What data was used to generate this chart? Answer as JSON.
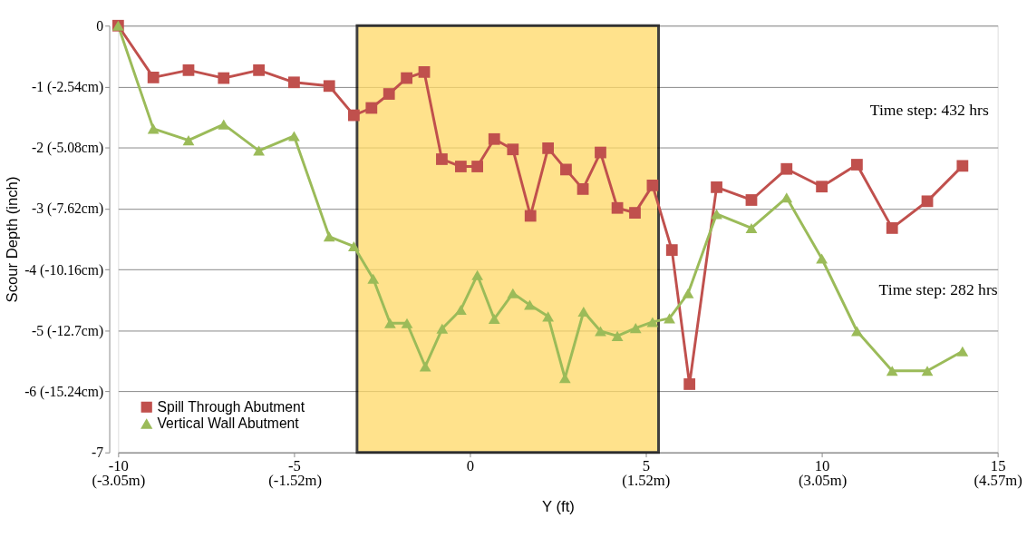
{
  "chart_data": {
    "type": "line",
    "xlabel": "Y (ft)",
    "ylabel": "Scour Depth (inch)",
    "xlim": [
      -10,
      15
    ],
    "ylim": [
      -7,
      0
    ],
    "xticks": [
      -10,
      -5,
      0,
      5,
      10,
      15
    ],
    "x2lim": [
      -3.05,
      4.57
    ],
    "x2ticks": [
      {
        "value": -3.05,
        "label": "(-3.05m)"
      },
      {
        "value": -1.52,
        "label": "(-1.52m)"
      },
      {
        "value": 1.52,
        "label": "(1.52m)"
      },
      {
        "value": 3.05,
        "label": "(3.05m)"
      },
      {
        "value": 4.57,
        "label": "(4.57m)"
      }
    ],
    "yticks": [
      0,
      {
        "value": -1,
        "label": "-1 (-2.54cm)"
      },
      {
        "value": -2,
        "label": "-2 (-5.08cm)"
      },
      {
        "value": -3,
        "label": "-3 (-7.62cm)"
      },
      {
        "value": -4,
        "label": "-4 (-10.16cm)"
      },
      {
        "value": -5,
        "label": "-5 (-12.7cm)"
      },
      {
        "value": -6,
        "label": "-6 (-15.24cm)"
      },
      -7
    ],
    "grid": "y",
    "legend": "bottom left",
    "line_style": "solid",
    "series": [
      {
        "name": "Spill Through Abutment",
        "color": "#c0504d",
        "marker": "square",
        "x": [
          -10,
          -9,
          -8,
          -7,
          -6,
          -5,
          -4,
          -3.3,
          -2.8,
          -2.3,
          -1.8,
          -1.3,
          -0.8,
          -0.26,
          0.21,
          0.69,
          1.22,
          1.72,
          2.22,
          2.73,
          3.21,
          3.71,
          4.19,
          4.69,
          5.19,
          5.74,
          6.24,
          7.01,
          8,
          9,
          10,
          11,
          12,
          13,
          14
        ],
        "values": [
          0,
          -0.85,
          -0.73,
          -0.86,
          -0.73,
          -0.93,
          -0.99,
          -1.47,
          -1.35,
          -1.12,
          -0.86,
          -0.76,
          -2.19,
          -2.31,
          -2.31,
          -1.86,
          -2.03,
          -3.12,
          -2.01,
          -2.36,
          -2.68,
          -2.08,
          -2.99,
          -3.07,
          -2.62,
          -3.68,
          -5.88,
          -2.65,
          -2.86,
          -2.35,
          -2.64,
          -2.28,
          -3.32,
          -2.88,
          -2.3
        ]
      },
      {
        "name": "Vertical Wall Abutment",
        "color": "#9bbb59",
        "marker": "triangle",
        "x": [
          -10,
          -9,
          -8,
          -7,
          -6,
          -5,
          -4,
          -3.3,
          -2.75,
          -2.27,
          -1.79,
          -1.27,
          -0.79,
          -0.26,
          0.21,
          0.69,
          1.22,
          1.7,
          2.22,
          2.7,
          3.23,
          3.71,
          4.19,
          4.71,
          5.19,
          5.67,
          6.2,
          7.01,
          8,
          9,
          10,
          11,
          12,
          13,
          14
        ],
        "values": [
          0,
          -1.69,
          -1.88,
          -1.62,
          -2.05,
          -1.81,
          -3.46,
          -3.62,
          -4.15,
          -4.88,
          -4.88,
          -5.59,
          -4.97,
          -4.66,
          -4.09,
          -4.81,
          -4.39,
          -4.58,
          -4.77,
          -5.78,
          -4.69,
          -5.01,
          -5.09,
          -4.96,
          -4.86,
          -4.8,
          -4.39,
          -3.09,
          -3.32,
          -2.82,
          -3.82,
          -5.01,
          -5.66,
          -5.66,
          -5.34
        ]
      }
    ],
    "bands": [
      {
        "axis": "x",
        "from": -3.21,
        "to": 5.36,
        "color": "#ffd966"
      }
    ],
    "annotations": [
      "Time step: 432  hrs",
      "Time step: 282  hrs"
    ]
  }
}
